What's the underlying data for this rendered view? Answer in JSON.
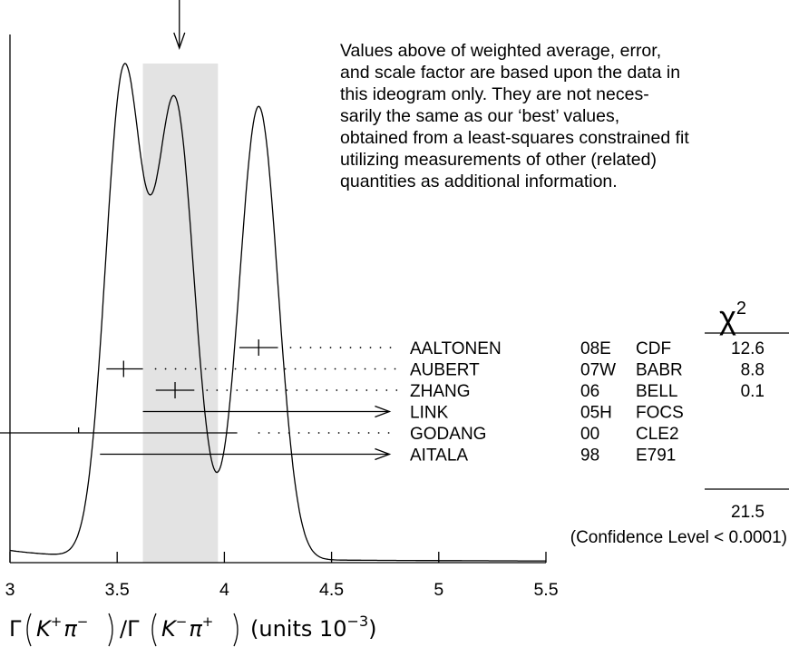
{
  "chart_data": {
    "type": "ideogram",
    "xlim": [
      3,
      5.5
    ],
    "xticks": [
      "3",
      "3.5",
      "4",
      "4.5",
      "5",
      "5.5"
    ],
    "xlabel": {
      "prefix": "Γ",
      "num_K": "K",
      "num_K_sup": "+",
      "num_pi": "π",
      "num_pi_sup": "−",
      "slash": "/Γ",
      "den_K": "K",
      "den_K_sup": "−",
      "den_pi": "π",
      "den_pi_sup": "+",
      "units": "(units 10",
      "units_sup": "−3",
      "units_close": ")"
    },
    "weighted_average": 3.79,
    "band": [
      3.62,
      3.97
    ],
    "note_lines": [
      "Values above of weighted average, error,",
      "and scale factor are based upon the data in",
      "this ideogram only.  They are not neces-",
      "sarily the same as our ‘best’ values,",
      "obtained from a least-squares constrained fit",
      "utilizing measurements of other (related)",
      "quantities as additional information."
    ],
    "chi2_header": "χ",
    "chi2_header_sup": "2",
    "measurements": [
      {
        "name": "AALTONEN",
        "year": "08E",
        "exp": "CDF",
        "chi2": "12.6",
        "value": 4.16,
        "err_lo": 0.09,
        "err_hi": 0.09,
        "marker": "cross"
      },
      {
        "name": "AUBERT",
        "year": "07W",
        "exp": "BABR",
        "chi2": "8.8",
        "value": 3.53,
        "err_lo": 0.08,
        "err_hi": 0.09,
        "marker": "cross"
      },
      {
        "name": "ZHANG",
        "year": "06",
        "exp": "BELL",
        "chi2": "0.1",
        "value": 3.77,
        "err_lo": 0.09,
        "err_hi": 0.09,
        "marker": "cross"
      },
      {
        "name": "LINK",
        "year": "05H",
        "exp": "FOCS",
        "chi2": "",
        "value": 3.62,
        "err_lo": 0.0,
        "err_hi": 1.15,
        "marker": "arrow-right"
      },
      {
        "name": "GODANG",
        "year": "00",
        "exp": "CLE2",
        "chi2": "",
        "value": 3.32,
        "err_lo": 1.35,
        "err_hi": 0.74,
        "marker": "arrow-left"
      },
      {
        "name": "AITALA",
        "year": "98",
        "exp": "E791",
        "chi2": "",
        "value": 3.42,
        "err_lo": 0.0,
        "err_hi": 1.35,
        "marker": "arrow-right"
      }
    ],
    "chi2_total": "21.5",
    "confidence_level": "(Confidence Level < 0.0001)"
  }
}
